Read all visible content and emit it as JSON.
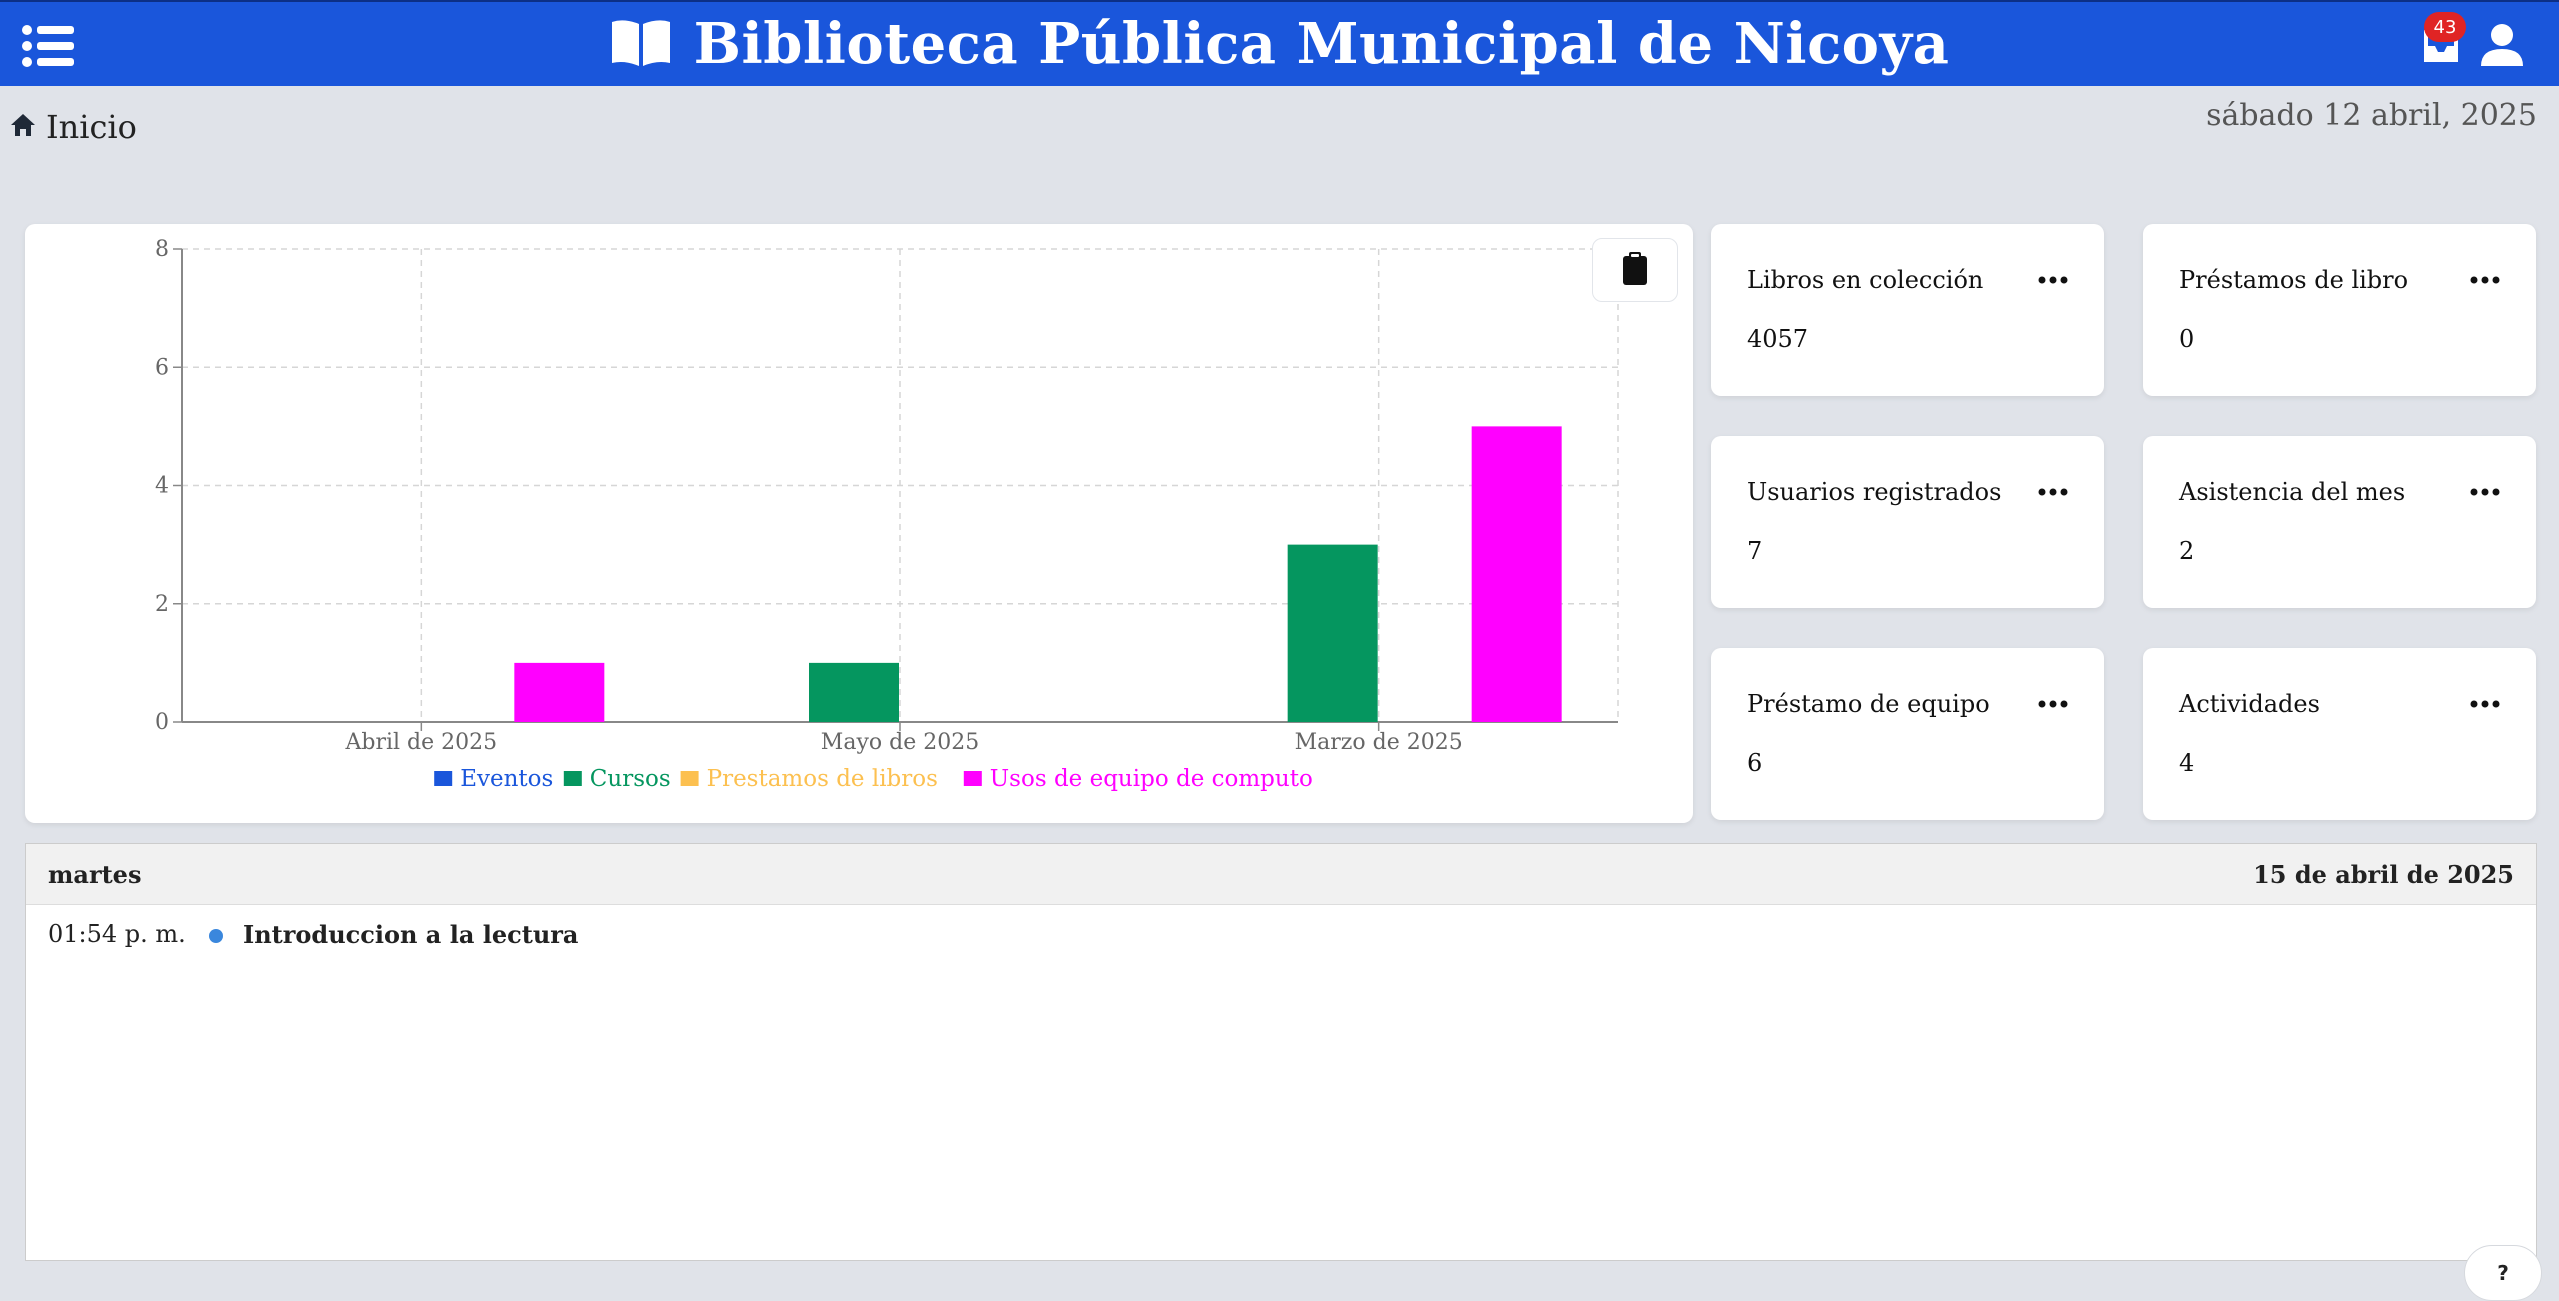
{
  "header": {
    "title": "Biblioteca Pública Municipal de Nicoya",
    "notification_count": "43",
    "color": "#1a56db"
  },
  "breadcrumb": {
    "label": "Inicio"
  },
  "date": "sábado 12 abril, 2025",
  "chart_data": {
    "type": "bar",
    "categories": [
      "Abril de 2025",
      "Mayo de 2025",
      "Marzo de 2025"
    ],
    "series": [
      {
        "name": "Eventos",
        "color": "#1a56db",
        "values": [
          0,
          0,
          0
        ]
      },
      {
        "name": "Cursos",
        "color": "#05965f",
        "values": [
          0,
          1,
          3
        ]
      },
      {
        "name": "Prestamos de libros",
        "color": "#fcc050",
        "values": [
          0,
          0,
          0
        ]
      },
      {
        "name": "Usos de equipo de computo",
        "color": "#ff00ff",
        "values": [
          1,
          0,
          5
        ]
      }
    ],
    "ylim": [
      0,
      8
    ],
    "yticks": [
      0,
      2,
      4,
      6,
      8
    ],
    "grid": true,
    "legend": "bottom"
  },
  "stats": [
    {
      "label": "Libros en colección",
      "value": "4057"
    },
    {
      "label": "Préstamos de libro",
      "value": "0"
    },
    {
      "label": "Usuarios registrados",
      "value": "7"
    },
    {
      "label": "Asistencia del mes",
      "value": "2"
    },
    {
      "label": "Préstamo de equipo",
      "value": "6"
    },
    {
      "label": "Actividades",
      "value": "4"
    }
  ],
  "agenda": {
    "day": "martes",
    "date": "15 de abril de 2025",
    "events": [
      {
        "time": "01:54 p. m.",
        "title": "Introduccion a la lectura"
      }
    ]
  },
  "help": {
    "label": "?"
  }
}
